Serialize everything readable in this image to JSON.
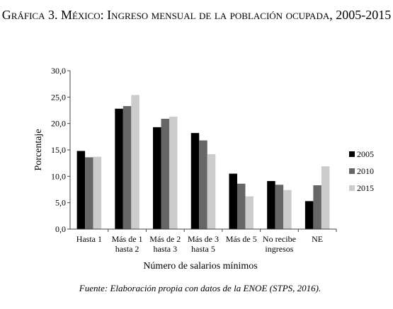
{
  "figure": {
    "title": "Gráfica 3. México: Ingreso mensual de la población ocupada, 2005-2015",
    "source": "Fuente: Elaboración propia con datos de la ENOE (STPS, 2016)."
  },
  "chart_data": {
    "type": "bar",
    "categories": [
      [
        "Hasta 1"
      ],
      [
        "Más de 1",
        "hasta 2"
      ],
      [
        "Más de 2",
        "hasta 3"
      ],
      [
        "Más de 3",
        "hasta 5"
      ],
      [
        "Más de 5"
      ],
      [
        "No recibe",
        "ingresos"
      ],
      [
        "NE"
      ]
    ],
    "series": [
      {
        "name": "2005",
        "color": "#000000",
        "values": [
          14.8,
          22.8,
          19.3,
          18.2,
          10.5,
          9.1,
          5.3
        ]
      },
      {
        "name": "2010",
        "color": "#666666",
        "values": [
          13.6,
          23.3,
          20.9,
          16.8,
          8.6,
          8.4,
          8.3
        ]
      },
      {
        "name": "2015",
        "color": "#cccccc",
        "values": [
          13.7,
          25.4,
          21.3,
          14.2,
          6.2,
          7.4,
          11.9
        ]
      }
    ],
    "xlabel": "Número de salarios mínimos",
    "ylabel": "Porcentaje",
    "ylim": [
      0,
      30
    ],
    "yticks": [
      "0,0",
      "5,0",
      "10,0",
      "15,0",
      "20,0",
      "25,0",
      "30,0"
    ],
    "grid": false,
    "legend": "right"
  }
}
